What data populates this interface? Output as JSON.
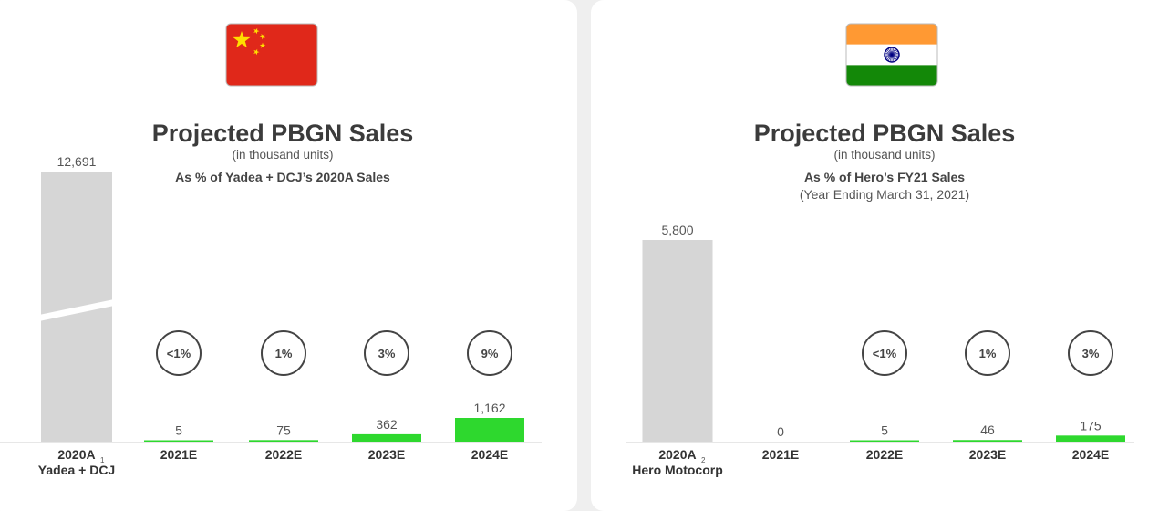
{
  "colors": {
    "base_bar": "#d6d6d6",
    "projected_bar": "#2ed82e",
    "axis": "#cfcfcf",
    "circle_stroke": "#444444",
    "china_red": "#e0281a",
    "china_star": "#ffde00",
    "india_saffron": "#ff9933",
    "india_green": "#138808",
    "india_chakra": "#000080"
  },
  "chart_data": [
    {
      "type": "bar",
      "flag": "china-flag",
      "title": "Projected PBGN Sales",
      "subtitle": "(in thousand units)",
      "note": "As % of Yadea + DCJ’s 2020A Sales",
      "note2": "",
      "categories": [
        "2020A",
        "2021E",
        "2022E",
        "2023E",
        "2024E"
      ],
      "base_superscript": "1",
      "base_sublabel": "Yadea + DCJ",
      "values": [
        12691,
        5,
        75,
        362,
        1162
      ],
      "value_labels": [
        "12,691",
        "5",
        "75",
        "362",
        "1,162"
      ],
      "pct_labels": [
        "",
        "<1%",
        "1%",
        "3%",
        "9%"
      ],
      "ylim": [
        0,
        1162
      ],
      "broken_first_bar": true
    },
    {
      "type": "bar",
      "flag": "india-flag",
      "title": "Projected PBGN Sales",
      "subtitle": "(in thousand units)",
      "note": "As % of Hero’s FY21 Sales",
      "note2": "(Year Ending March 31, 2021)",
      "categories": [
        "2020A",
        "2021E",
        "2022E",
        "2023E",
        "2024E"
      ],
      "base_superscript": "2",
      "base_sublabel": "Hero Motocorp",
      "values": [
        5800,
        0,
        5,
        46,
        175
      ],
      "value_labels": [
        "5,800",
        "0",
        "5",
        "46",
        "175"
      ],
      "pct_labels": [
        "",
        "",
        "<1%",
        "1%",
        "3%"
      ],
      "ylim": [
        0,
        5800
      ],
      "broken_first_bar": false
    }
  ]
}
